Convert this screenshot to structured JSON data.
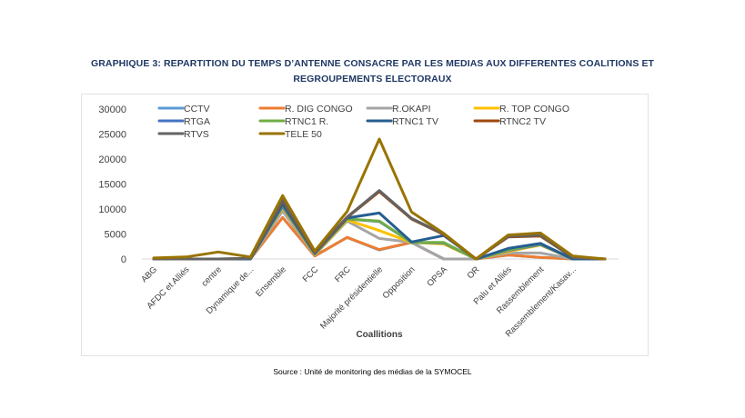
{
  "title_line1": "GRAPHIQUE 3: REPARTITION DU TEMPS D’ANTENNE CONSACRE PAR LES MEDIAS AUX DIFFERENTES COALITIONS ET",
  "title_line2": "REGROUPEMENTS ELECTORAUX",
  "source": "Source : Unité de monitoring des médias de la SYMOCEL",
  "chart_data": {
    "type": "line",
    "title": "GRAPHIQUE 3: REPARTITION DU TEMPS D’ANTENNE CONSACRE PAR LES MEDIAS AUX DIFFERENTES COALITIONS ET REGROUPEMENTS ELECTORAUX",
    "xlabel": "Coallitions",
    "ylabel": "",
    "ylim": [
      0,
      30000
    ],
    "yticks": [
      0,
      5000,
      10000,
      15000,
      20000,
      25000,
      30000
    ],
    "grid": false,
    "legend": "top",
    "categories": [
      "ABG",
      "AFDC et Alliés",
      "centre",
      "Dynamique de...",
      "Ensemble",
      "FCC",
      "FRC",
      "Majorité présidentielle",
      "Opposition",
      "OPSA",
      "OR",
      "Palu et Alliés",
      "Rassemblement",
      "Rassemblement/Kasav...",
      ""
    ],
    "series": [
      {
        "name": "CCTV",
        "color": "#5b9bd5",
        "values": [
          0,
          0,
          0,
          0,
          8300,
          600,
          4300,
          1800,
          3300,
          0,
          0,
          800,
          300,
          0,
          0
        ]
      },
      {
        "name": "R. DIG CONGO",
        "color": "#ed7d31",
        "values": [
          0,
          0,
          0,
          0,
          8300,
          600,
          4300,
          1900,
          3300,
          0,
          0,
          800,
          300,
          0,
          0
        ]
      },
      {
        "name": "R.OKAPI",
        "color": "#a5a5a5",
        "values": [
          0,
          0,
          0,
          0,
          9600,
          800,
          7600,
          4100,
          3300,
          0,
          0,
          1200,
          1200,
          0,
          0
        ]
      },
      {
        "name": "R. TOP CONGO",
        "color": "#ffc000",
        "values": [
          0,
          0,
          0,
          0,
          10200,
          900,
          7800,
          5700,
          3300,
          3000,
          0,
          1500,
          2800,
          0,
          0
        ]
      },
      {
        "name": "RTGA",
        "color": "#4472c4",
        "values": [
          0,
          0,
          0,
          0,
          10500,
          1000,
          8000,
          7500,
          3300,
          3200,
          0,
          1700,
          2900,
          0,
          0
        ]
      },
      {
        "name": "RTNC1 R.",
        "color": "#70ad47",
        "values": [
          0,
          0,
          0,
          0,
          10800,
          1100,
          8000,
          7600,
          3300,
          3300,
          0,
          1800,
          3000,
          0,
          0
        ]
      },
      {
        "name": "RTNC1 TV",
        "color": "#255e91",
        "values": [
          0,
          0,
          0,
          0,
          11000,
          1200,
          8200,
          9200,
          3400,
          4700,
          0,
          2100,
          3100,
          0,
          0
        ]
      },
      {
        "name": "RTNC2 TV",
        "color": "#9e480e",
        "values": [
          0,
          0,
          0,
          100,
          11600,
          1300,
          8300,
          13500,
          8000,
          4900,
          0,
          4400,
          4600,
          300,
          0
        ]
      },
      {
        "name": "RTVS",
        "color": "#636363",
        "values": [
          0,
          0,
          0,
          100,
          11800,
          1400,
          8400,
          13700,
          8100,
          5000,
          0,
          4500,
          4800,
          300,
          0
        ]
      },
      {
        "name": "TELE 50",
        "color": "#997300",
        "values": [
          200,
          400,
          1400,
          400,
          12700,
          1600,
          9500,
          24000,
          9400,
          5100,
          0,
          4800,
          5200,
          600,
          0
        ]
      }
    ]
  }
}
